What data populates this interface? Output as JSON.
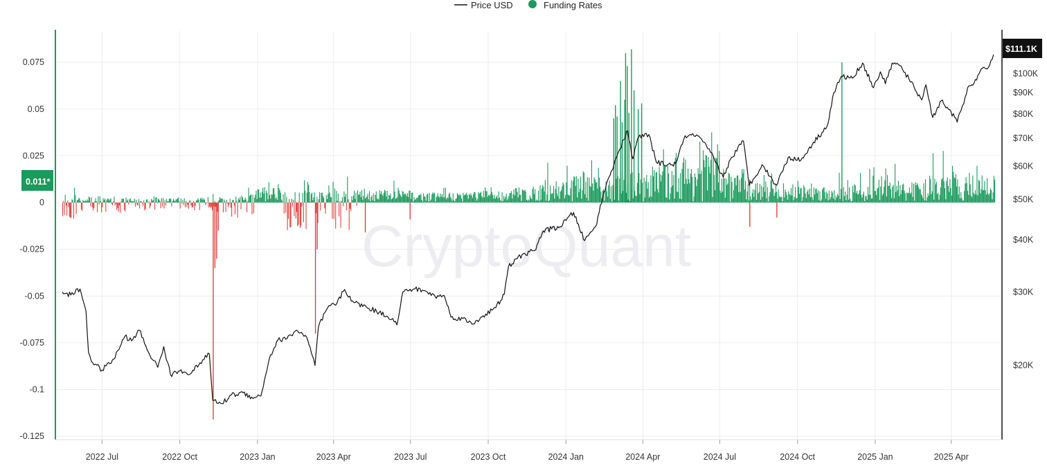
{
  "legend": {
    "price_label": "Price USD",
    "funding_label": "Funding Rates"
  },
  "watermark": "CryptoQuant",
  "badges": {
    "current_funding": "0.011*",
    "current_price": "$111.1K"
  },
  "colors": {
    "price_line": "#111111",
    "funding_positive": "#1a9a5c",
    "funding_negative": "#e0413a",
    "left_axis": "#1a9a5c",
    "right_axis": "#111111",
    "grid": "#ececec",
    "price_badge_bg": "#111111",
    "funding_badge_bg": "#1a9a5c"
  },
  "chart_data": {
    "type": "bar+line",
    "x_range": [
      "2022-05-15",
      "2025-05-22"
    ],
    "x_ticks": [
      {
        "date": "2022-07-01",
        "label": "2022 Jul"
      },
      {
        "date": "2022-10-01",
        "label": "2022 Oct"
      },
      {
        "date": "2023-01-01",
        "label": "2023 Jan"
      },
      {
        "date": "2023-04-01",
        "label": "2023 Apr"
      },
      {
        "date": "2023-07-01",
        "label": "2023 Jul"
      },
      {
        "date": "2023-10-01",
        "label": "2023 Oct"
      },
      {
        "date": "2024-01-01",
        "label": "2024 Jan"
      },
      {
        "date": "2024-04-01",
        "label": "2024 Apr"
      },
      {
        "date": "2024-07-01",
        "label": "2024 Jul"
      },
      {
        "date": "2024-10-01",
        "label": "2024 Oct"
      },
      {
        "date": "2025-01-01",
        "label": "2025 Jan"
      },
      {
        "date": "2025-04-01",
        "label": "2025 Apr"
      }
    ],
    "left_axis": {
      "range": [
        -0.125,
        0.085
      ],
      "ticks": [
        {
          "value": 0.075,
          "label": "0.075"
        },
        {
          "value": 0.05,
          "label": "0.05"
        },
        {
          "value": 0.025,
          "label": "0.025"
        },
        {
          "value": 0,
          "label": "0"
        },
        {
          "value": -0.025,
          "label": "-0.025"
        },
        {
          "value": -0.05,
          "label": "-0.05"
        },
        {
          "value": -0.075,
          "label": "-0.075"
        },
        {
          "value": -0.1,
          "label": "-0.1"
        },
        {
          "value": -0.125,
          "label": "-0.125"
        }
      ]
    },
    "right_axis": {
      "scale": "log",
      "range": [
        14500,
        135000
      ],
      "ticks": [
        {
          "value": 100000,
          "label": "$100K"
        },
        {
          "value": 90000,
          "label": "$90K"
        },
        {
          "value": 80000,
          "label": "$80K"
        },
        {
          "value": 70000,
          "label": "$70K"
        },
        {
          "value": 60000,
          "label": "$60K"
        },
        {
          "value": 50000,
          "label": "$50K"
        },
        {
          "value": 40000,
          "label": "$40K"
        },
        {
          "value": 30000,
          "label": "$30K"
        },
        {
          "value": 20000,
          "label": "$20K"
        }
      ]
    },
    "grid": true,
    "legend_position": "top-center",
    "series": [
      {
        "name": "Price USD",
        "type": "line",
        "axis": "right",
        "points": [
          [
            "2022-05-15",
            30000
          ],
          [
            "2022-05-25",
            29500
          ],
          [
            "2022-06-05",
            30500
          ],
          [
            "2022-06-12",
            27000
          ],
          [
            "2022-06-15",
            21500
          ],
          [
            "2022-06-20",
            20300
          ],
          [
            "2022-07-01",
            19500
          ],
          [
            "2022-07-15",
            20700
          ],
          [
            "2022-07-28",
            23500
          ],
          [
            "2022-08-05",
            22900
          ],
          [
            "2022-08-14",
            24300
          ],
          [
            "2022-08-25",
            21500
          ],
          [
            "2022-09-05",
            19800
          ],
          [
            "2022-09-12",
            22200
          ],
          [
            "2022-09-20",
            19000
          ],
          [
            "2022-10-01",
            19400
          ],
          [
            "2022-10-15",
            19200
          ],
          [
            "2022-10-25",
            20300
          ],
          [
            "2022-11-05",
            21300
          ],
          [
            "2022-11-09",
            16500
          ],
          [
            "2022-11-20",
            16200
          ],
          [
            "2022-12-01",
            17000
          ],
          [
            "2022-12-15",
            17200
          ],
          [
            "2022-12-25",
            16800
          ],
          [
            "2023-01-05",
            16900
          ],
          [
            "2023-01-15",
            20800
          ],
          [
            "2023-01-25",
            23000
          ],
          [
            "2023-02-05",
            23200
          ],
          [
            "2023-02-16",
            24300
          ],
          [
            "2023-02-28",
            23400
          ],
          [
            "2023-03-10",
            20000
          ],
          [
            "2023-03-14",
            24700
          ],
          [
            "2023-03-25",
            27500
          ],
          [
            "2023-04-05",
            28200
          ],
          [
            "2023-04-14",
            30400
          ],
          [
            "2023-04-25",
            28300
          ],
          [
            "2023-05-10",
            27600
          ],
          [
            "2023-05-25",
            26800
          ],
          [
            "2023-06-10",
            25900
          ],
          [
            "2023-06-15",
            25000
          ],
          [
            "2023-06-22",
            30000
          ],
          [
            "2023-07-05",
            30500
          ],
          [
            "2023-07-15",
            30300
          ],
          [
            "2023-07-30",
            29300
          ],
          [
            "2023-08-10",
            29400
          ],
          [
            "2023-08-18",
            26100
          ],
          [
            "2023-09-01",
            25900
          ],
          [
            "2023-09-12",
            25100
          ],
          [
            "2023-09-25",
            26300
          ],
          [
            "2023-10-10",
            27500
          ],
          [
            "2023-10-20",
            29600
          ],
          [
            "2023-10-25",
            34500
          ],
          [
            "2023-11-10",
            36800
          ],
          [
            "2023-11-25",
            37700
          ],
          [
            "2023-12-05",
            42000
          ],
          [
            "2023-12-15",
            42500
          ],
          [
            "2023-12-25",
            43000
          ],
          [
            "2024-01-10",
            46500
          ],
          [
            "2024-01-23",
            39800
          ],
          [
            "2024-02-05",
            43000
          ],
          [
            "2024-02-15",
            52000
          ],
          [
            "2024-02-28",
            62000
          ],
          [
            "2024-03-05",
            66000
          ],
          [
            "2024-03-14",
            73000
          ],
          [
            "2024-03-20",
            62500
          ],
          [
            "2024-03-27",
            70500
          ],
          [
            "2024-04-08",
            71500
          ],
          [
            "2024-04-17",
            61300
          ],
          [
            "2024-04-30",
            60500
          ],
          [
            "2024-05-10",
            60800
          ],
          [
            "2024-05-21",
            71000
          ],
          [
            "2024-06-05",
            71000
          ],
          [
            "2024-06-20",
            64800
          ],
          [
            "2024-07-05",
            56500
          ],
          [
            "2024-07-15",
            63000
          ],
          [
            "2024-07-29",
            69000
          ],
          [
            "2024-08-05",
            54000
          ],
          [
            "2024-08-20",
            60500
          ],
          [
            "2024-09-06",
            54000
          ],
          [
            "2024-09-20",
            63000
          ],
          [
            "2024-10-05",
            62000
          ],
          [
            "2024-10-20",
            68500
          ],
          [
            "2024-10-30",
            72300
          ],
          [
            "2024-11-06",
            75800
          ],
          [
            "2024-11-13",
            90000
          ],
          [
            "2024-11-22",
            98500
          ],
          [
            "2024-12-05",
            97500
          ],
          [
            "2024-12-17",
            106000
          ],
          [
            "2024-12-30",
            92500
          ],
          [
            "2025-01-07",
            101000
          ],
          [
            "2025-01-13",
            94500
          ],
          [
            "2025-01-21",
            106000
          ],
          [
            "2025-01-30",
            104500
          ],
          [
            "2025-02-10",
            97000
          ],
          [
            "2025-02-25",
            86500
          ],
          [
            "2025-03-02",
            94000
          ],
          [
            "2025-03-10",
            78500
          ],
          [
            "2025-03-20",
            86000
          ],
          [
            "2025-03-30",
            82000
          ],
          [
            "2025-04-08",
            76500
          ],
          [
            "2025-04-22",
            93500
          ],
          [
            "2025-05-01",
            96500
          ],
          [
            "2025-05-08",
            103000
          ],
          [
            "2025-05-15",
            103500
          ],
          [
            "2025-05-21",
            111100
          ]
        ]
      },
      {
        "name": "Funding Rates",
        "type": "bar",
        "axis": "left",
        "note": "Major spikes read from the chart; the dense low-level bars between spikes are drawn procedurally",
        "spikes": [
          [
            "2022-11-09",
            -0.116
          ],
          [
            "2022-11-11",
            -0.035
          ],
          [
            "2022-11-13",
            -0.03
          ],
          [
            "2022-11-15",
            -0.015
          ],
          [
            "2023-03-10",
            -0.07
          ],
          [
            "2023-03-12",
            -0.025
          ],
          [
            "2023-05-08",
            -0.016
          ],
          [
            "2023-06-30",
            -0.009
          ],
          [
            "2024-02-26",
            0.045
          ],
          [
            "2024-02-28",
            0.052
          ],
          [
            "2024-03-01",
            0.046
          ],
          [
            "2024-03-05",
            0.065
          ],
          [
            "2024-03-07",
            0.043
          ],
          [
            "2024-03-10",
            0.055
          ],
          [
            "2024-03-11",
            0.08
          ],
          [
            "2024-03-13",
            0.073
          ],
          [
            "2024-03-15",
            0.048
          ],
          [
            "2024-03-18",
            0.082
          ],
          [
            "2024-03-21",
            0.06
          ],
          [
            "2024-03-26",
            0.05
          ],
          [
            "2024-03-30",
            0.053
          ],
          [
            "2024-11-22",
            0.075
          ],
          [
            "2024-08-05",
            -0.013
          ],
          [
            "2024-09-06",
            -0.008
          ]
        ]
      }
    ]
  }
}
